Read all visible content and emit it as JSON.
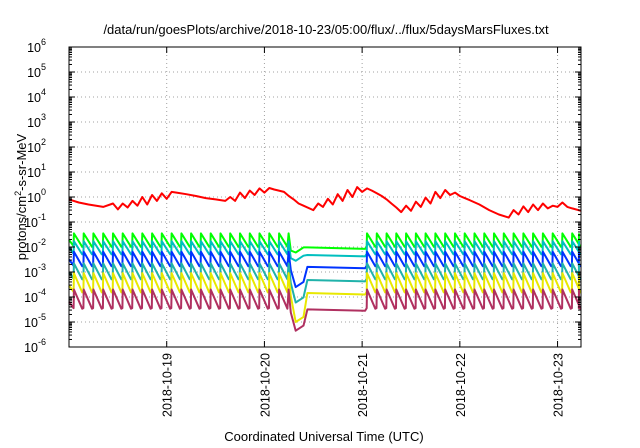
{
  "chart_data": {
    "type": "line",
    "title": "/data/run/goesPlots/archive/2018-10-23/05:00/flux/../flux/5daysMarsFluxes.txt",
    "xlabel": "Coordinated Universal Time (UTC)",
    "ylabel": {
      "pre": "protons/cm",
      "sup": "2",
      "post": "-s-sr-MeV"
    },
    "yscale": "log",
    "ylim": [
      1e-06,
      1000000.0
    ],
    "xlim": [
      0,
      5.24
    ],
    "x_unit": "days since 2018-10-18 00:00 UTC",
    "grid": true,
    "x_ticks": [
      {
        "x": 1,
        "label": "2018-10-19"
      },
      {
        "x": 2,
        "label": "2018-10-20"
      },
      {
        "x": 3,
        "label": "2018-10-21"
      },
      {
        "x": 4,
        "label": "2018-10-22"
      },
      {
        "x": 5,
        "label": "2018-10-23"
      }
    ],
    "y_ticks": [
      {
        "v": 1e-06,
        "base": "10",
        "exp": "-6"
      },
      {
        "v": 1e-05,
        "base": "10",
        "exp": "-5"
      },
      {
        "v": 0.0001,
        "base": "10",
        "exp": "-4"
      },
      {
        "v": 0.001,
        "base": "10",
        "exp": "-3"
      },
      {
        "v": 0.01,
        "base": "10",
        "exp": "-2"
      },
      {
        "v": 0.1,
        "base": "10",
        "exp": "-1"
      },
      {
        "v": 1,
        "base": "10",
        "exp": "0"
      },
      {
        "v": 10,
        "base": "10",
        "exp": "1"
      },
      {
        "v": 100,
        "base": "10",
        "exp": "2"
      },
      {
        "v": 1000,
        "base": "10",
        "exp": "3"
      },
      {
        "v": 10000,
        "base": "10",
        "exp": "4"
      },
      {
        "v": 100000,
        "base": "10",
        "exp": "5"
      },
      {
        "v": 1000000,
        "base": "10",
        "exp": "6"
      }
    ],
    "series": [
      {
        "color": "#ff0000",
        "x": [
          0.0,
          0.1,
          0.2,
          0.35,
          0.45,
          0.5,
          0.55,
          0.6,
          0.65,
          0.7,
          0.75,
          0.8,
          0.85,
          0.9,
          0.95,
          1.0,
          1.05,
          1.1,
          1.2,
          1.3,
          1.4,
          1.5,
          1.6,
          1.65,
          1.7,
          1.75,
          1.8,
          1.85,
          1.9,
          1.95,
          2.0,
          2.05,
          2.1,
          2.2,
          2.25,
          2.3,
          2.35,
          2.4,
          2.5,
          2.55,
          2.6,
          2.65,
          2.7,
          2.75,
          2.8,
          2.85,
          2.9,
          2.95,
          3.0,
          3.05,
          3.1,
          3.15,
          3.2,
          3.25,
          3.3,
          3.35,
          3.4,
          3.45,
          3.5,
          3.55,
          3.6,
          3.65,
          3.7,
          3.75,
          3.8,
          3.85,
          3.9,
          3.95,
          4.0,
          4.05,
          4.1,
          4.2,
          4.3,
          4.4,
          4.5,
          4.55,
          4.6,
          4.65,
          4.7,
          4.75,
          4.8,
          4.85,
          4.9,
          4.95,
          5.0,
          5.05,
          5.1,
          5.15,
          5.24
        ],
        "y": [
          0.8,
          0.6,
          0.5,
          0.4,
          0.55,
          0.32,
          0.55,
          0.38,
          0.7,
          0.45,
          1.0,
          0.5,
          1.2,
          0.7,
          1.4,
          0.85,
          1.6,
          1.5,
          1.3,
          1.1,
          0.9,
          0.8,
          0.7,
          1.0,
          0.7,
          1.5,
          0.9,
          1.8,
          1.2,
          2.2,
          1.5,
          2.3,
          2.0,
          1.6,
          1.1,
          0.8,
          0.55,
          0.45,
          0.3,
          0.55,
          0.4,
          0.85,
          0.5,
          1.3,
          0.7,
          1.9,
          1.0,
          2.5,
          1.6,
          2.2,
          1.8,
          1.4,
          1.1,
          0.8,
          0.55,
          0.38,
          0.25,
          0.45,
          0.28,
          0.65,
          0.4,
          0.95,
          0.55,
          1.6,
          0.9,
          1.9,
          1.2,
          1.5,
          1.1,
          0.9,
          0.75,
          0.5,
          0.3,
          0.2,
          0.15,
          0.3,
          0.2,
          0.42,
          0.25,
          0.5,
          0.3,
          0.55,
          0.35,
          0.45,
          0.4,
          0.6,
          0.4,
          0.35,
          0.28
        ]
      },
      {
        "color": "#00ff00",
        "base": 0.012,
        "peak": 0.035,
        "dip_min": 0.006
      },
      {
        "color": "#00bfbf",
        "base": 0.006,
        "peak": 0.017,
        "dip_min": 0.0028
      },
      {
        "color": "#0033ff",
        "base": 0.002,
        "peak": 0.0065,
        "dip_min": 0.00025
      },
      {
        "color": "#20b2aa",
        "base": 0.0006,
        "peak": 0.0022,
        "dip_min": 6e-05
      },
      {
        "color": "#e8e800",
        "base": 0.00018,
        "peak": 0.0009,
        "dip_min": 1e-05
      },
      {
        "color": "#b03060",
        "base": 4e-05,
        "peak": 0.0002,
        "dip_min": 4.5e-06
      }
    ],
    "sawtooth": {
      "peaks": [
        0.05,
        0.15,
        0.25,
        0.35,
        0.45,
        0.55,
        0.65,
        0.75,
        0.85,
        0.95,
        1.05,
        1.15,
        1.25,
        1.35,
        1.45,
        1.55,
        1.65,
        1.75,
        1.85,
        1.95,
        2.05,
        2.15,
        2.25,
        3.05,
        3.15,
        3.25,
        3.35,
        3.45,
        3.55,
        3.65,
        3.75,
        3.85,
        3.95,
        4.05,
        4.15,
        4.25,
        4.35,
        4.45,
        4.55,
        4.65,
        4.75,
        4.85,
        4.95,
        5.05,
        5.15,
        5.22
      ],
      "dip_start": 2.25,
      "dip_min_x": 2.32,
      "recover_x": 2.4,
      "gap_end": 3.0
    }
  }
}
